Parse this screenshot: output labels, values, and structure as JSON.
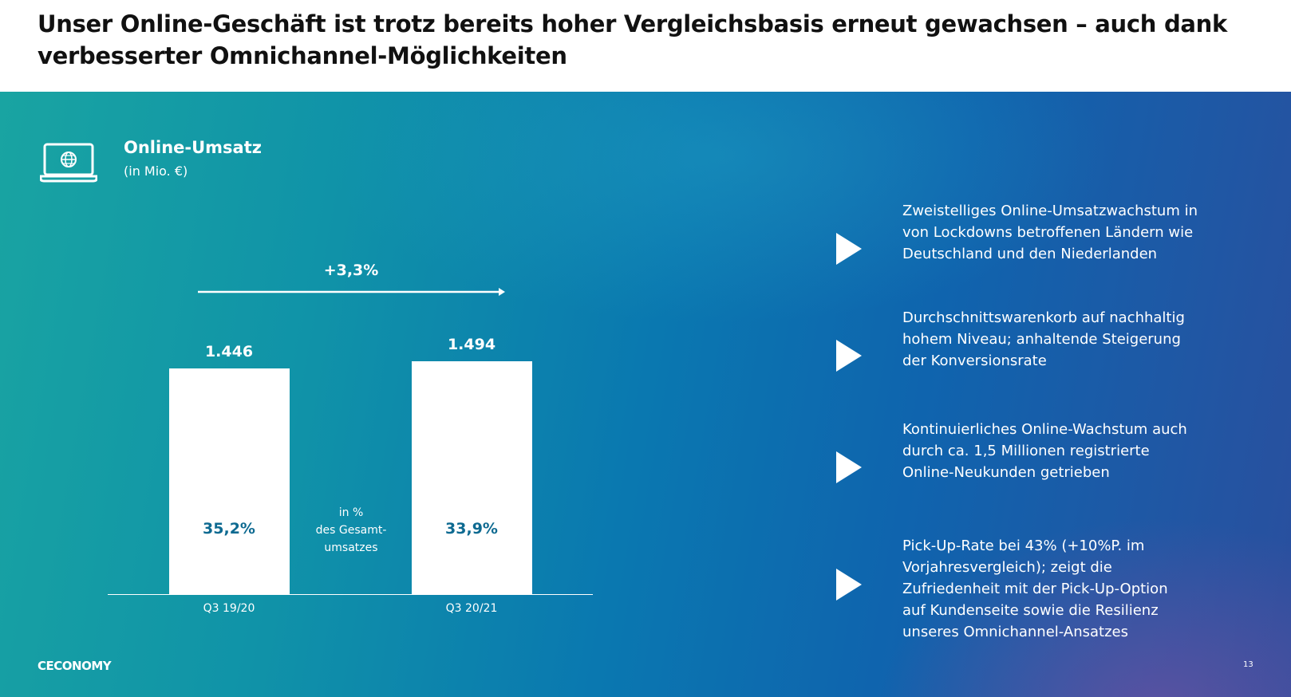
{
  "header": {
    "title": "Unser Online-Geschäft ist trotz bereits hoher Vergleichsbasis erneut gewachsen – auch dank verbesserter Omnichannel-Möglichkeiten"
  },
  "chart_data": {
    "type": "bar",
    "title": "Online-Umsatz",
    "subtitle": "(in Mio. €)",
    "categories": [
      "Q3 19/20",
      "Q3 20/21"
    ],
    "values": [
      1446,
      1494
    ],
    "value_labels": [
      "1.446",
      "1.494"
    ],
    "share_labels": [
      "35,2%",
      "33,9%"
    ],
    "share_note": [
      "in %",
      "des Gesamt-",
      "umsatzes"
    ],
    "growth_label": "+3,3%",
    "ylim": [
      0,
      1550
    ],
    "colors": {
      "bar": "#ffffff",
      "share_text": "#0e6a91"
    }
  },
  "bullets": [
    "Zweistelliges Online-Umsatzwachstum in von Lockdowns betroffenen Ländern wie Deutschland und den Niederlanden",
    "Durchschnittswarenkorb auf nachhaltig hohem Niveau; anhaltende Steigerung der Konversionsrate",
    "Kontinuierliches Online-Wachstum auch durch ca. 1,5 Millionen registrierte Online-Neukunden getrieben",
    "Pick-Up-Rate bei 43% (+10%P. im Vorjahresvergleich); zeigt die Zufriedenheit mit der Pick-Up-Option auf Kundenseite sowie die Resilienz unseres Omnichannel-Ansatzes"
  ],
  "footer": {
    "logo": "CECONOMY",
    "page": "13"
  }
}
